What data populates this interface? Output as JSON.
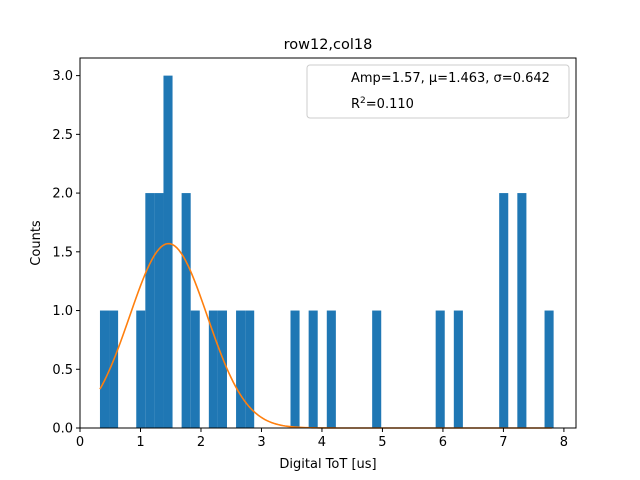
{
  "chart_data": {
    "type": "bar",
    "title": "row12,col18",
    "xlabel": "Digital ToT [us]",
    "ylabel": "Counts",
    "xlim": [
      0,
      8.2
    ],
    "ylim": [
      0,
      3.15
    ],
    "x_ticks": [
      "0",
      "1",
      "2",
      "3",
      "4",
      "5",
      "6",
      "7",
      "8"
    ],
    "y_ticks": [
      "0.0",
      "0.5",
      "1.0",
      "1.5",
      "2.0",
      "2.5",
      "3.0"
    ],
    "bar_color": "#1f77b4",
    "fit_color": "#ff7f0e",
    "bin_width": 0.15,
    "bins": [
      {
        "x": 0.33,
        "count": 1
      },
      {
        "x": 0.48,
        "count": 1
      },
      {
        "x": 0.93,
        "count": 1
      },
      {
        "x": 1.08,
        "count": 2
      },
      {
        "x": 1.23,
        "count": 2
      },
      {
        "x": 1.38,
        "count": 3
      },
      {
        "x": 1.68,
        "count": 2
      },
      {
        "x": 1.83,
        "count": 1
      },
      {
        "x": 2.13,
        "count": 1
      },
      {
        "x": 2.28,
        "count": 1
      },
      {
        "x": 2.58,
        "count": 1
      },
      {
        "x": 2.73,
        "count": 1
      },
      {
        "x": 3.48,
        "count": 1
      },
      {
        "x": 3.78,
        "count": 1
      },
      {
        "x": 4.08,
        "count": 1
      },
      {
        "x": 4.83,
        "count": 1
      },
      {
        "x": 5.88,
        "count": 1
      },
      {
        "x": 6.18,
        "count": 1
      },
      {
        "x": 6.93,
        "count": 2
      },
      {
        "x": 7.23,
        "count": 2
      },
      {
        "x": 7.68,
        "count": 1
      }
    ],
    "fit": {
      "amp": 1.57,
      "mu": 1.463,
      "sigma": 0.642,
      "x_range": [
        0.33,
        7.8
      ]
    },
    "legend": {
      "placement": "top-right",
      "line1": "Amp=1.57, μ=1.463, σ=0.642",
      "r2_prefix": "R",
      "r2_sup": "2",
      "r2_value": "=0.110"
    }
  }
}
